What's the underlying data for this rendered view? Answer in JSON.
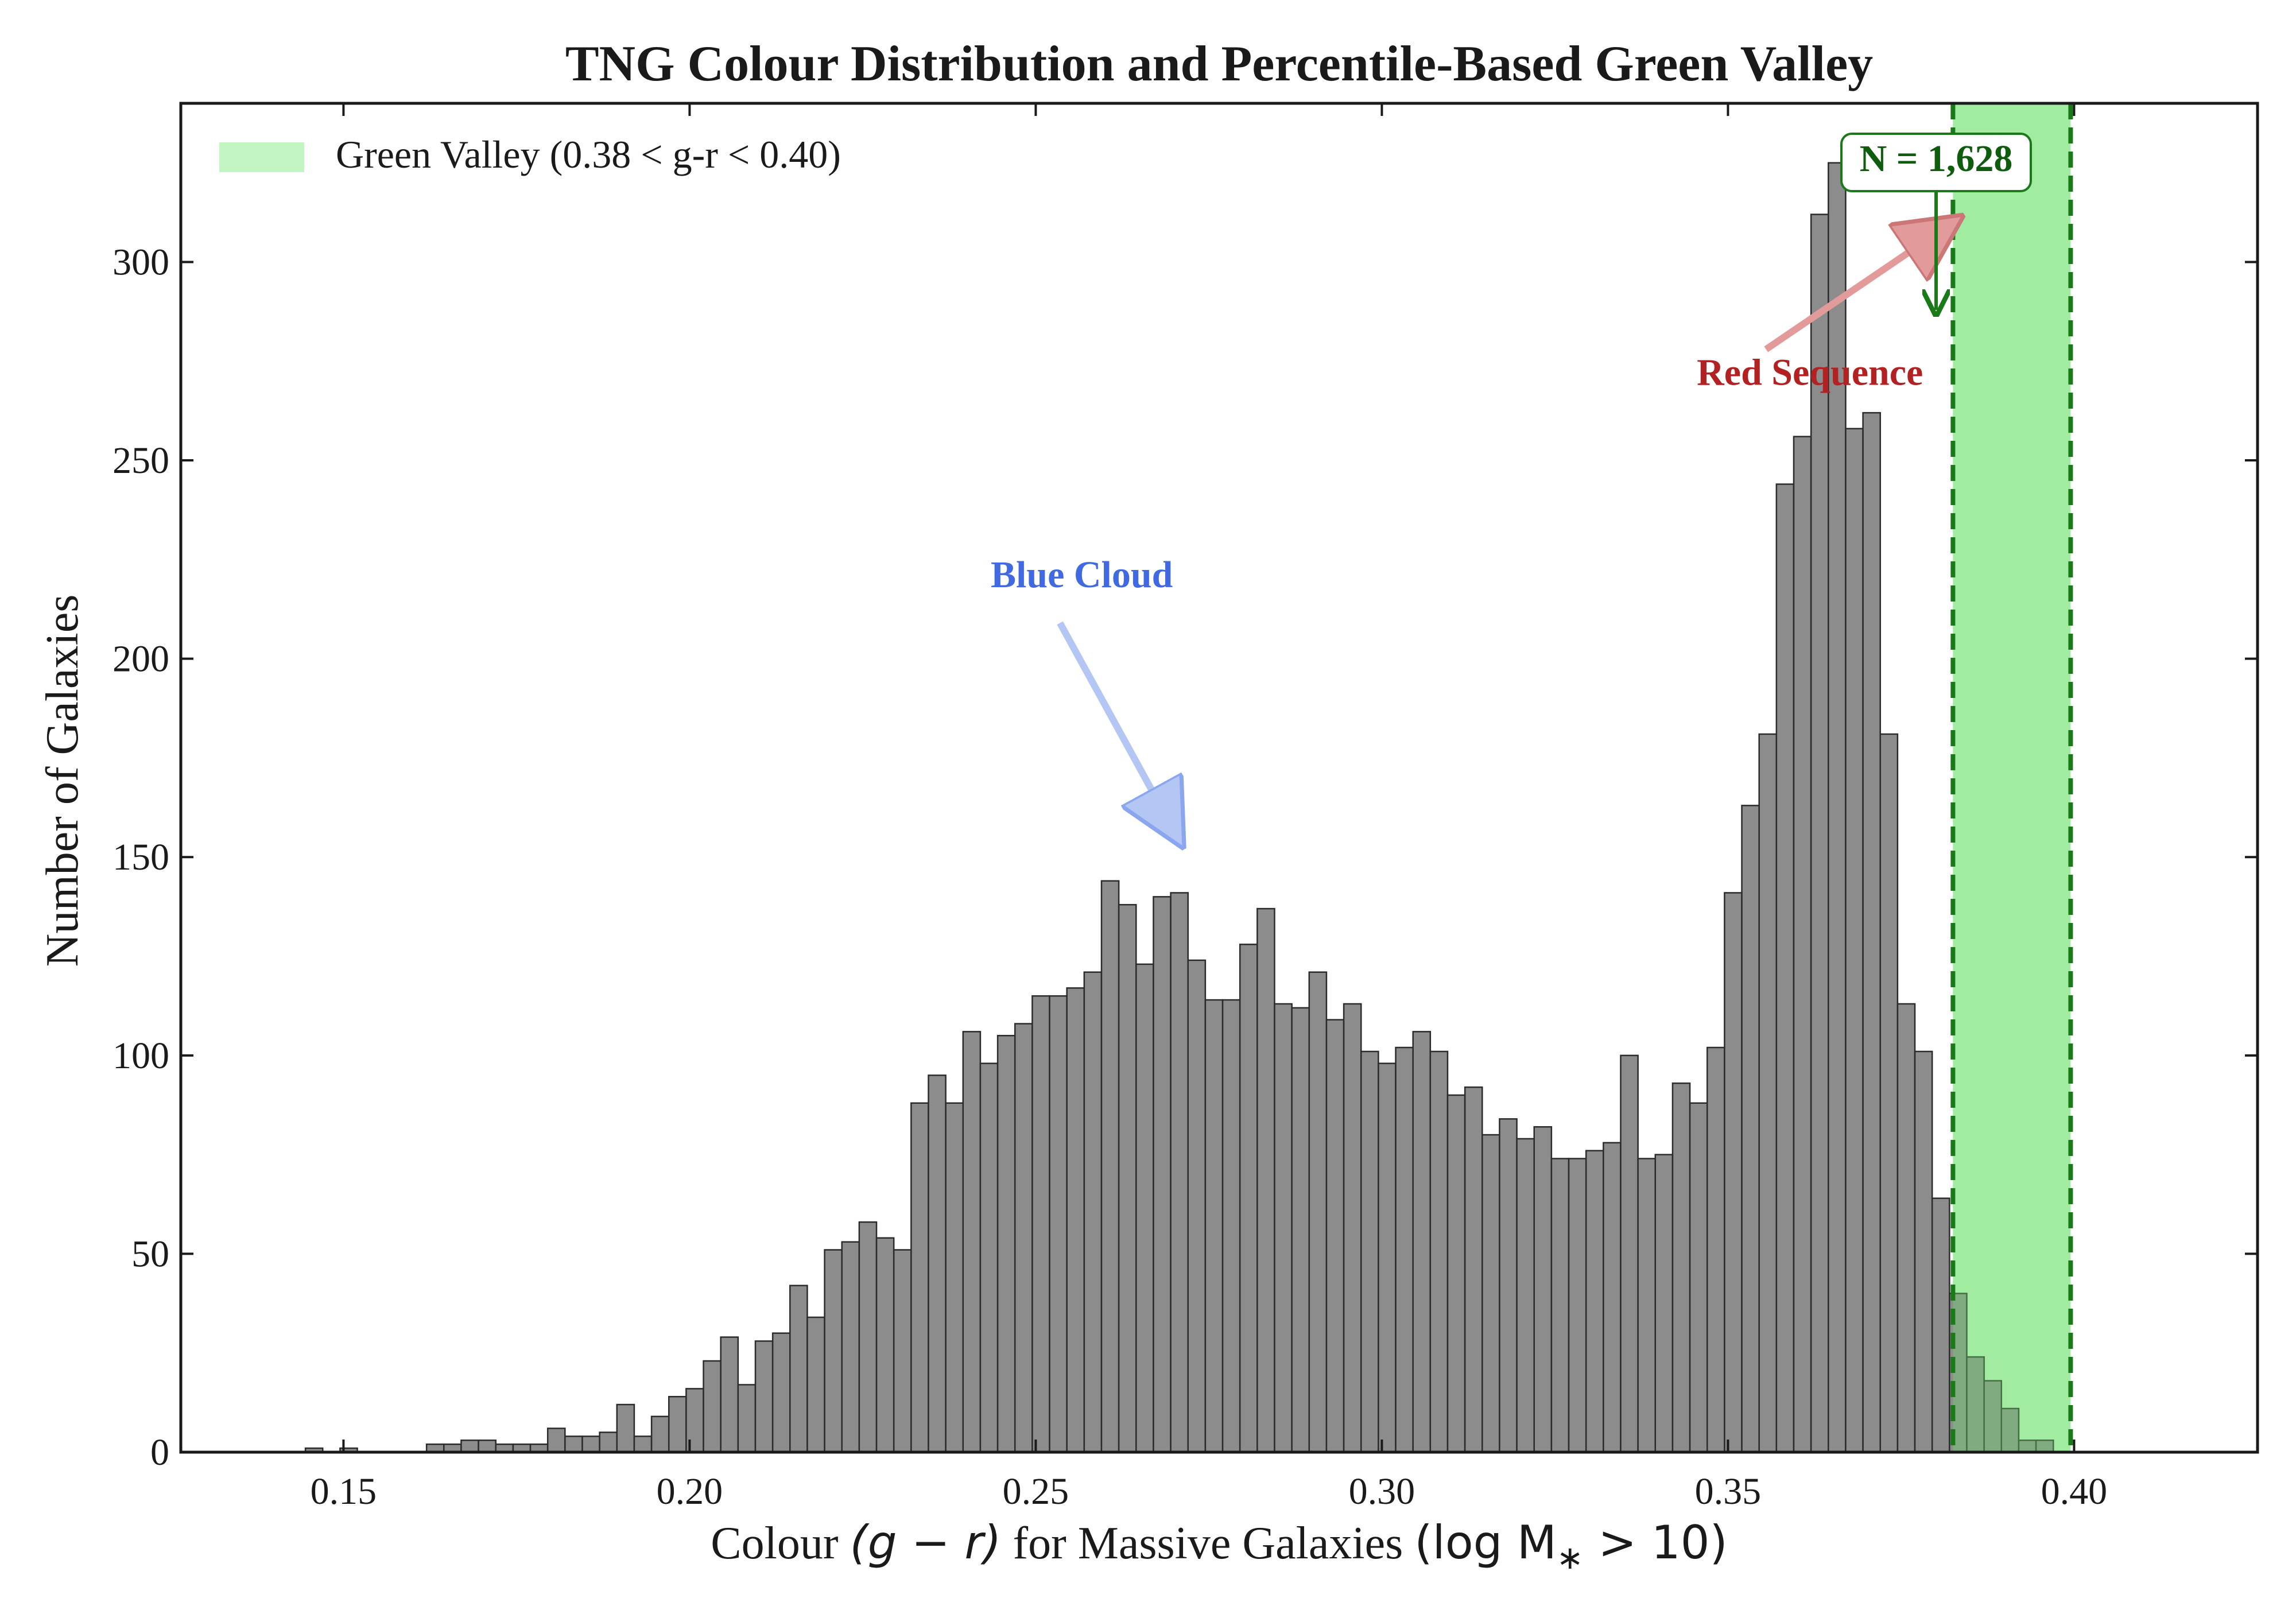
{
  "chart_data": {
    "type": "bar",
    "title": "TNG Colour Distribution and Percentile-Based Green Valley",
    "xlabel_prefix": "Colour ",
    "xlabel_math1": "(g − r)",
    "xlabel_middle": " for Massive Galaxies ",
    "xlabel_math2": "(log M",
    "xlabel_math2_sub": "∗",
    "xlabel_math2_end": " > 10)",
    "ylabel": "Number of Galaxies",
    "xlim": [
      0.1265,
      0.4265
    ],
    "ylim": [
      0,
      340
    ],
    "xticks": [
      0.15,
      0.2,
      0.25,
      0.3,
      0.35,
      0.4
    ],
    "xtick_labels": [
      "0.15",
      "0.20",
      "0.25",
      "0.30",
      "0.35",
      "0.40"
    ],
    "yticks": [
      0,
      50,
      100,
      150,
      200,
      250,
      300
    ],
    "ytick_labels": [
      "0",
      "50",
      "100",
      "150",
      "200",
      "250",
      "300"
    ],
    "bin_start": 0.1445,
    "bin_width": 0.0025,
    "counts": [
      1,
      0,
      1,
      0,
      0,
      0,
      0,
      2,
      2,
      3,
      3,
      2,
      2,
      2,
      6,
      4,
      4,
      5,
      12,
      4,
      9,
      14,
      16,
      23,
      29,
      17,
      28,
      30,
      42,
      34,
      51,
      53,
      58,
      54,
      51,
      88,
      95,
      88,
      106,
      98,
      105,
      108,
      115,
      115,
      117,
      121,
      144,
      138,
      123,
      140,
      141,
      124,
      114,
      114,
      128,
      137,
      113,
      112,
      121,
      109,
      113,
      101,
      98,
      102,
      106,
      101,
      90,
      92,
      80,
      84,
      79,
      82,
      74,
      74,
      76,
      78,
      100,
      74,
      75,
      93,
      88,
      102,
      141,
      163,
      181,
      244,
      256,
      312,
      325,
      258,
      262,
      181,
      113,
      101,
      64,
      40,
      24,
      18,
      11,
      3,
      3
    ],
    "bar_color": "#8c8c8c",
    "bar_edge": "#2b2b2b",
    "green_valley": {
      "lower": 0.3825,
      "upper": 0.3995,
      "fill": "#c2f5c2",
      "line_color": "#1a7a1a",
      "legend_label": "Green Valley (0.38 < g-r < 0.40)",
      "count_label": "N = 1,628",
      "count_color": "#0f5c0f"
    },
    "annotations": [
      {
        "text": "Blue Cloud",
        "color": "#4169e1",
        "text_x": 0.2435,
        "text_y": 218,
        "arrow_from": [
          0.2535,
          209
        ],
        "arrow_to": [
          0.2705,
          155
        ]
      },
      {
        "text": "Red Sequence",
        "color": "#b22222",
        "text_x": 0.3455,
        "text_y": 269,
        "arrow_from": [
          0.3555,
          278
        ],
        "arrow_to": [
          0.3825,
          310
        ]
      }
    ],
    "legend_position": "top-left",
    "grid": false
  }
}
